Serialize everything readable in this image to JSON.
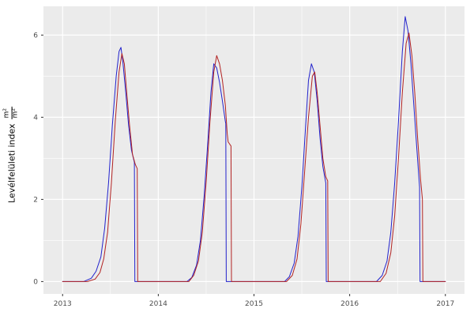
{
  "chart_data": {
    "type": "line",
    "title": "",
    "xlabel": "",
    "ylabel": "Levélfelületi index",
    "ylabel_unit_num": "m²",
    "ylabel_unit_den": "m²",
    "xlim": [
      2012.8,
      2017.2
    ],
    "ylim": [
      -0.3,
      6.7
    ],
    "x_ticks": [
      2013,
      2014,
      2015,
      2016,
      2017
    ],
    "y_ticks": [
      0,
      2,
      4,
      6
    ],
    "x_minor_ticks": [
      2013.5,
      2014.5,
      2015.5,
      2016.5
    ],
    "y_minor_ticks": [
      1,
      3,
      5
    ],
    "grid": true,
    "legend": "none",
    "panel_bg": "#EBEBEB",
    "grid_color": "#FFFFFF",
    "tick_color": "#333333",
    "tick_label_color": "#4D4D4D",
    "series": [
      {
        "name": "blue-series",
        "color": "#2222CC",
        "points": [
          [
            2013.0,
            0
          ],
          [
            2013.22,
            0
          ],
          [
            2013.3,
            0.08
          ],
          [
            2013.35,
            0.25
          ],
          [
            2013.4,
            0.6
          ],
          [
            2013.44,
            1.3
          ],
          [
            2013.48,
            2.4
          ],
          [
            2013.52,
            3.8
          ],
          [
            2013.56,
            5.0
          ],
          [
            2013.59,
            5.6
          ],
          [
            2013.61,
            5.7
          ],
          [
            2013.63,
            5.35
          ],
          [
            2013.66,
            4.6
          ],
          [
            2013.69,
            3.8
          ],
          [
            2013.72,
            3.2
          ],
          [
            2013.75,
            2.9
          ],
          [
            2013.755,
            0
          ],
          [
            2014.3,
            0
          ],
          [
            2014.35,
            0.1
          ],
          [
            2014.4,
            0.4
          ],
          [
            2014.44,
            1.0
          ],
          [
            2014.48,
            2.1
          ],
          [
            2014.52,
            3.5
          ],
          [
            2014.55,
            4.6
          ],
          [
            2014.58,
            5.3
          ],
          [
            2014.61,
            5.2
          ],
          [
            2014.64,
            4.85
          ],
          [
            2014.67,
            4.4
          ],
          [
            2014.7,
            3.9
          ],
          [
            2014.705,
            3.85
          ],
          [
            2014.71,
            0
          ],
          [
            2015.32,
            0
          ],
          [
            2015.37,
            0.12
          ],
          [
            2015.42,
            0.45
          ],
          [
            2015.46,
            1.1
          ],
          [
            2015.5,
            2.3
          ],
          [
            2015.54,
            3.8
          ],
          [
            2015.57,
            4.9
          ],
          [
            2015.6,
            5.3
          ],
          [
            2015.63,
            5.1
          ],
          [
            2015.66,
            4.4
          ],
          [
            2015.69,
            3.5
          ],
          [
            2015.72,
            2.8
          ],
          [
            2015.75,
            2.4
          ],
          [
            2015.755,
            0
          ],
          [
            2016.28,
            0
          ],
          [
            2016.34,
            0.15
          ],
          [
            2016.39,
            0.5
          ],
          [
            2016.43,
            1.2
          ],
          [
            2016.47,
            2.4
          ],
          [
            2016.51,
            3.9
          ],
          [
            2016.55,
            5.6
          ],
          [
            2016.58,
            6.45
          ],
          [
            2016.61,
            6.1
          ],
          [
            2016.64,
            5.3
          ],
          [
            2016.67,
            4.3
          ],
          [
            2016.7,
            3.3
          ],
          [
            2016.73,
            2.3
          ],
          [
            2016.735,
            0
          ],
          [
            2017.0,
            0
          ]
        ]
      },
      {
        "name": "red-series",
        "color": "#B22222",
        "points": [
          [
            2013.0,
            0
          ],
          [
            2013.26,
            0
          ],
          [
            2013.34,
            0.06
          ],
          [
            2013.39,
            0.22
          ],
          [
            2013.43,
            0.55
          ],
          [
            2013.47,
            1.2
          ],
          [
            2013.51,
            2.4
          ],
          [
            2013.55,
            3.9
          ],
          [
            2013.59,
            5.1
          ],
          [
            2013.62,
            5.55
          ],
          [
            2013.645,
            5.3
          ],
          [
            2013.67,
            4.6
          ],
          [
            2013.7,
            3.8
          ],
          [
            2013.73,
            3.1
          ],
          [
            2013.76,
            2.85
          ],
          [
            2013.78,
            2.75
          ],
          [
            2013.785,
            0
          ],
          [
            2014.32,
            0
          ],
          [
            2014.37,
            0.15
          ],
          [
            2014.42,
            0.5
          ],
          [
            2014.46,
            1.2
          ],
          [
            2014.5,
            2.4
          ],
          [
            2014.54,
            3.9
          ],
          [
            2014.58,
            5.1
          ],
          [
            2014.61,
            5.5
          ],
          [
            2014.64,
            5.3
          ],
          [
            2014.67,
            4.9
          ],
          [
            2014.7,
            4.3
          ],
          [
            2014.72,
            3.6
          ],
          [
            2014.73,
            3.4
          ],
          [
            2014.76,
            3.3
          ],
          [
            2014.765,
            0
          ],
          [
            2015.34,
            0
          ],
          [
            2015.4,
            0.15
          ],
          [
            2015.45,
            0.55
          ],
          [
            2015.49,
            1.4
          ],
          [
            2015.53,
            2.7
          ],
          [
            2015.57,
            4.0
          ],
          [
            2015.61,
            5.0
          ],
          [
            2015.635,
            5.1
          ],
          [
            2015.66,
            4.6
          ],
          [
            2015.69,
            3.8
          ],
          [
            2015.72,
            3.0
          ],
          [
            2015.75,
            2.55
          ],
          [
            2015.77,
            2.45
          ],
          [
            2015.775,
            0
          ],
          [
            2016.32,
            0
          ],
          [
            2016.38,
            0.2
          ],
          [
            2016.43,
            0.7
          ],
          [
            2016.47,
            1.6
          ],
          [
            2016.51,
            3.0
          ],
          [
            2016.55,
            4.6
          ],
          [
            2016.59,
            5.8
          ],
          [
            2016.62,
            6.05
          ],
          [
            2016.65,
            5.5
          ],
          [
            2016.68,
            4.6
          ],
          [
            2016.71,
            3.5
          ],
          [
            2016.74,
            2.5
          ],
          [
            2016.76,
            2.0
          ],
          [
            2016.765,
            0
          ],
          [
            2017.0,
            0
          ]
        ]
      }
    ]
  }
}
